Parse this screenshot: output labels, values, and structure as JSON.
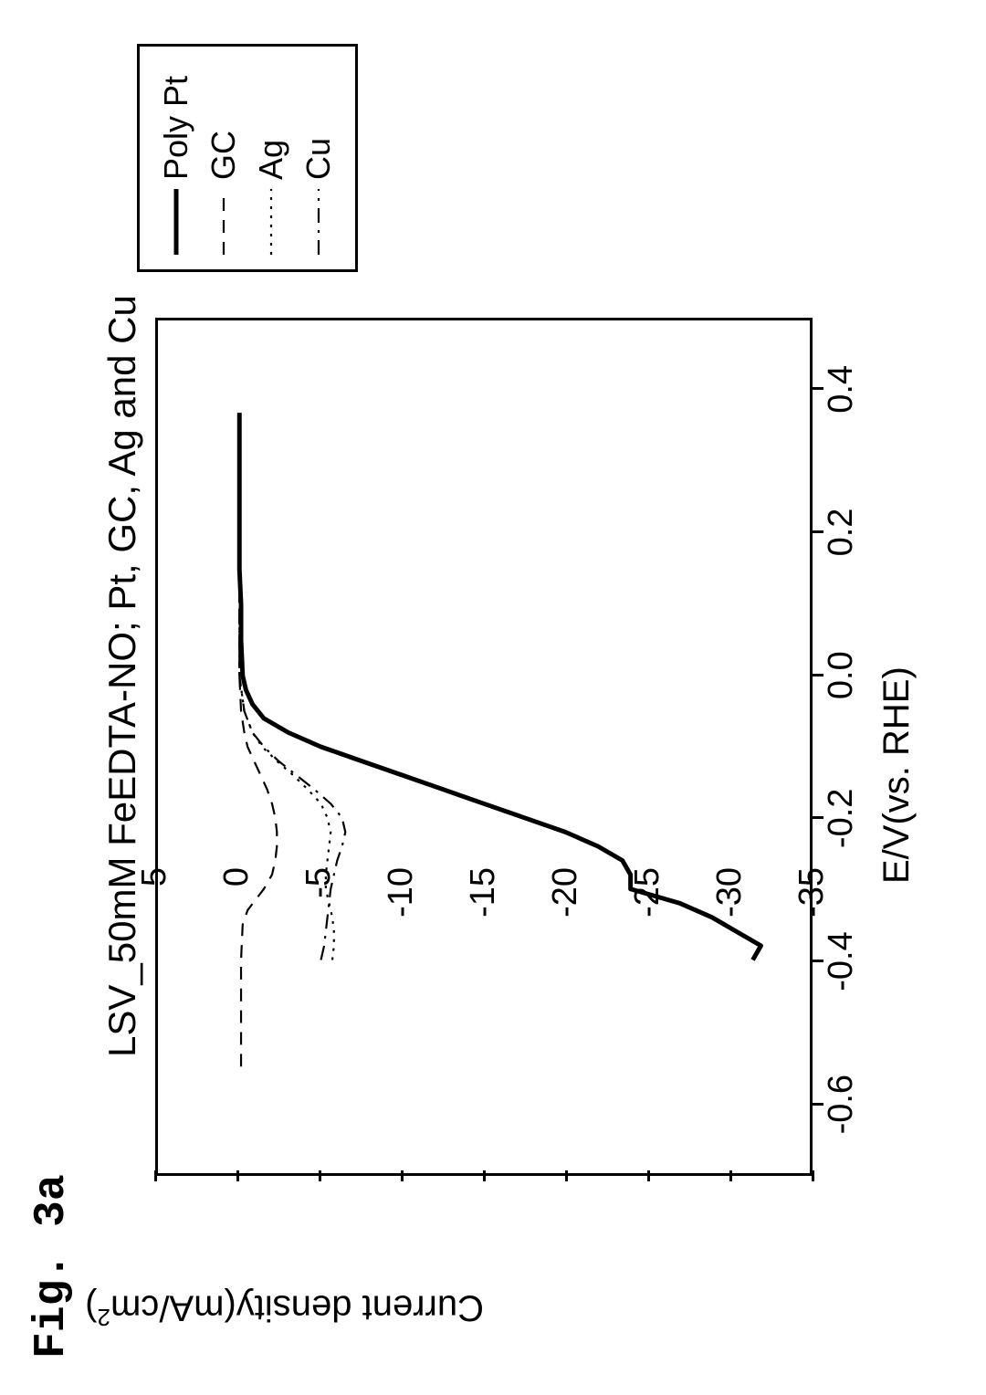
{
  "figure_label": "Fig. 3a",
  "chart": {
    "type": "line",
    "title": "LSV_50mM FeEDTA-NO; Pt, GC, Ag and Cu",
    "title_fontsize": 42,
    "xlabel": "E/V(vs. RHE)",
    "ylabel_html": "Current density(mA/cm<sup>2</sup>)",
    "label_fontsize": 40,
    "tick_fontsize": 38,
    "background_color": "#ffffff",
    "border_color": "#000000",
    "border_width": 3,
    "xlim": [
      -0.7,
      0.5
    ],
    "ylim": [
      -35,
      5
    ],
    "xticks": [
      -0.6,
      -0.4,
      -0.2,
      0.0,
      0.2,
      0.4
    ],
    "yticks": [
      5,
      0,
      -5,
      -10,
      -15,
      -20,
      -25,
      -30,
      -35
    ],
    "legend": {
      "position": "right-outside",
      "items": [
        {
          "label": "Poly Pt",
          "style": "solid",
          "width": 5,
          "color": "#000000"
        },
        {
          "label": "GC",
          "style": "dashed",
          "width": 2.2,
          "color": "#000000"
        },
        {
          "label": "Ag",
          "style": "dotted",
          "width": 2.2,
          "color": "#000000"
        },
        {
          "label": "Cu",
          "style": "dashdot",
          "width": 2.2,
          "color": "#000000"
        }
      ]
    },
    "series": [
      {
        "name": "Poly Pt",
        "style": "solid",
        "width": 5,
        "color": "#000000",
        "x": [
          -0.4,
          -0.38,
          -0.36,
          -0.34,
          -0.32,
          -0.3,
          -0.28,
          -0.26,
          -0.24,
          -0.22,
          -0.2,
          -0.18,
          -0.16,
          -0.14,
          -0.12,
          -0.1,
          -0.08,
          -0.06,
          -0.04,
          -0.02,
          0.0,
          0.05,
          0.1,
          0.15,
          0.18,
          0.2,
          0.25,
          0.3,
          0.35,
          0.37
        ],
        "y": [
          -31.5,
          -32.0,
          -30.5,
          -29.0,
          -27.0,
          -24.0,
          -24.0,
          -23.5,
          -22.0,
          -20.0,
          -17.5,
          -15.0,
          -12.5,
          -10.0,
          -7.5,
          -5.0,
          -3.0,
          -1.5,
          -0.8,
          -0.4,
          -0.2,
          -0.1,
          -0.1,
          0.0,
          0.0,
          0.0,
          0.0,
          0.0,
          0.0,
          0.0
        ]
      },
      {
        "name": "GC",
        "style": "dashed",
        "width": 2.2,
        "color": "#000000",
        "x": [
          -0.55,
          -0.5,
          -0.45,
          -0.4,
          -0.35,
          -0.33,
          -0.3,
          -0.28,
          -0.26,
          -0.24,
          -0.22,
          -0.2,
          -0.18,
          -0.16,
          -0.14,
          -0.12,
          -0.1,
          -0.08,
          -0.05,
          0.0,
          0.1,
          0.2,
          0.3,
          0.37
        ],
        "y": [
          -0.1,
          -0.1,
          -0.1,
          -0.1,
          -0.2,
          -0.5,
          -1.5,
          -2.0,
          -2.2,
          -2.3,
          -2.3,
          -2.2,
          -2.0,
          -1.7,
          -1.3,
          -0.9,
          -0.5,
          -0.3,
          -0.1,
          0.0,
          0.0,
          0.0,
          0.0,
          0.0
        ]
      },
      {
        "name": "Ag",
        "style": "dotted",
        "width": 2.2,
        "color": "#000000",
        "x": [
          -0.4,
          -0.38,
          -0.36,
          -0.34,
          -0.32,
          -0.3,
          -0.28,
          -0.26,
          -0.24,
          -0.22,
          -0.2,
          -0.18,
          -0.16,
          -0.14,
          -0.12,
          -0.1,
          -0.08,
          -0.05,
          0.0,
          0.1,
          0.2,
          0.3,
          0.37
        ],
        "y": [
          -5.7,
          -5.8,
          -5.8,
          -5.7,
          -5.5,
          -5.3,
          -5.3,
          -5.4,
          -5.5,
          -5.6,
          -5.4,
          -5.0,
          -4.2,
          -3.3,
          -2.3,
          -1.4,
          -0.8,
          -0.3,
          0.0,
          0.0,
          0.0,
          0.0,
          0.0
        ]
      },
      {
        "name": "Cu",
        "style": "dashdot",
        "width": 2.2,
        "color": "#000000",
        "x": [
          -0.4,
          -0.38,
          -0.36,
          -0.34,
          -0.32,
          -0.3,
          -0.28,
          -0.26,
          -0.24,
          -0.22,
          -0.2,
          -0.18,
          -0.16,
          -0.14,
          -0.12,
          -0.1,
          -0.08,
          -0.05,
          0.0,
          0.1,
          0.2,
          0.3,
          0.37
        ],
        "y": [
          -5.0,
          -5.2,
          -5.3,
          -5.4,
          -5.5,
          -5.6,
          -5.8,
          -6.0,
          -6.3,
          -6.5,
          -6.3,
          -5.6,
          -4.6,
          -3.5,
          -2.4,
          -1.5,
          -0.8,
          -0.3,
          0.0,
          0.0,
          0.0,
          0.0,
          0.0
        ]
      }
    ]
  }
}
